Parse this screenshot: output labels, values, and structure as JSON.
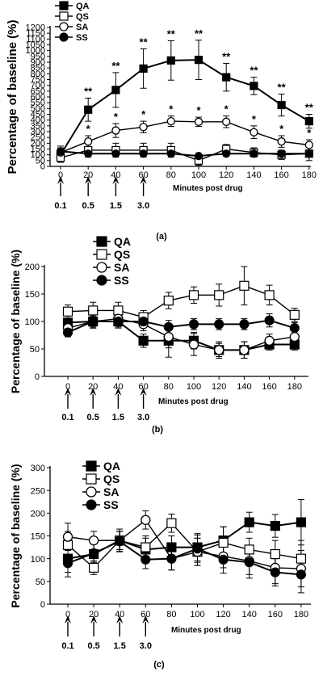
{
  "chart_data": [
    {
      "type": "line",
      "panel_label": "(a)",
      "ylabel": "Percentage of baseline (%)",
      "xlabel": "Minutes post drug",
      "x": [
        0,
        20,
        40,
        60,
        80,
        100,
        120,
        140,
        160,
        180
      ],
      "xticks": [
        "0",
        "20",
        "40",
        "60",
        "80",
        "100",
        "120",
        "140",
        "160",
        "180"
      ],
      "ylim": [
        0,
        1200
      ],
      "yticks": [
        "0",
        "50",
        "100",
        "150",
        "200",
        "250",
        "300",
        "350",
        "400",
        "450",
        "500",
        "550",
        "600",
        "650",
        "700",
        "750",
        "800",
        "850",
        "900",
        "950",
        "1000",
        "1050",
        "1100",
        "1150",
        "1200"
      ],
      "ytick_values": [
        0,
        50,
        100,
        150,
        200,
        250,
        300,
        350,
        400,
        450,
        500,
        550,
        600,
        650,
        700,
        750,
        800,
        850,
        900,
        950,
        1000,
        1050,
        1100,
        1150,
        1200
      ],
      "doses": [
        {
          "x": 0,
          "label": "0.1"
        },
        {
          "x": 20,
          "label": "0.5"
        },
        {
          "x": 40,
          "label": "1.5"
        },
        {
          "x": 60,
          "label": "3.0"
        }
      ],
      "legend": [
        "QA",
        "QS",
        "SA",
        "SS"
      ],
      "series": [
        {
          "name": "QA",
          "marker": "square-filled",
          "values": [
            100,
            490,
            660,
            845,
            915,
            920,
            770,
            695,
            530,
            390
          ],
          "errors": [
            55,
            100,
            150,
            170,
            170,
            170,
            120,
            75,
            95,
            60
          ]
        },
        {
          "name": "QS",
          "marker": "square-open",
          "values": [
            75,
            140,
            140,
            140,
            140,
            50,
            150,
            120,
            100,
            110
          ],
          "errors": [
            40,
            60,
            60,
            60,
            60,
            40,
            40,
            40,
            40,
            60
          ]
        },
        {
          "name": "SA",
          "marker": "circle-open",
          "values": [
            120,
            215,
            310,
            340,
            390,
            385,
            385,
            295,
            215,
            185
          ],
          "errors": [
            55,
            50,
            60,
            50,
            45,
            40,
            50,
            55,
            50,
            45
          ]
        },
        {
          "name": "SS",
          "marker": "circle-filled",
          "values": [
            130,
            110,
            110,
            110,
            110,
            90,
            110,
            110,
            110,
            110
          ],
          "errors": [
            30,
            20,
            20,
            20,
            20,
            20,
            20,
            20,
            20,
            20
          ]
        }
      ],
      "stars": [
        {
          "series": "QA",
          "x": 20,
          "text": "**"
        },
        {
          "series": "QA",
          "x": 40,
          "text": "**"
        },
        {
          "series": "QA",
          "x": 60,
          "text": "**"
        },
        {
          "series": "QA",
          "x": 80,
          "text": "**"
        },
        {
          "series": "QA",
          "x": 100,
          "text": "**"
        },
        {
          "series": "QA",
          "x": 120,
          "text": "**"
        },
        {
          "series": "QA",
          "x": 140,
          "text": "**"
        },
        {
          "series": "QA",
          "x": 160,
          "text": "**"
        },
        {
          "series": "QA",
          "x": 180,
          "text": "**"
        },
        {
          "series": "SA",
          "x": 20,
          "text": "*"
        },
        {
          "series": "SA",
          "x": 40,
          "text": "*"
        },
        {
          "series": "SA",
          "x": 60,
          "text": "*"
        },
        {
          "series": "SA",
          "x": 80,
          "text": "*"
        },
        {
          "series": "SA",
          "x": 100,
          "text": "*"
        },
        {
          "series": "SA",
          "x": 120,
          "text": "*"
        },
        {
          "series": "SA",
          "x": 140,
          "text": "*"
        },
        {
          "series": "SA",
          "x": 160,
          "text": "*"
        },
        {
          "series": "SA",
          "x": 180,
          "text": "*"
        }
      ]
    },
    {
      "type": "line",
      "panel_label": "(b)",
      "ylabel": "Percentage of baseline (%)",
      "xlabel": "Minutes post drug",
      "x": [
        0,
        20,
        40,
        60,
        80,
        100,
        120,
        140,
        160,
        180
      ],
      "xticks": [
        "0",
        "20",
        "40",
        "60",
        "80",
        "100",
        "120",
        "140",
        "160",
        "180"
      ],
      "ylim": [
        0,
        200
      ],
      "yticks": [
        "0",
        "50",
        "100",
        "150",
        "200"
      ],
      "ytick_values": [
        0,
        50,
        100,
        150,
        200
      ],
      "doses": [
        {
          "x": 0,
          "label": "0.1"
        },
        {
          "x": 20,
          "label": "0.5"
        },
        {
          "x": 40,
          "label": "1.5"
        },
        {
          "x": 60,
          "label": "3.0"
        }
      ],
      "legend": [
        "QA",
        "QS",
        "SA",
        "SS"
      ],
      "series": [
        {
          "name": "QA",
          "marker": "square-filled",
          "values": [
            98,
            100,
            100,
            65,
            65,
            65,
            48,
            48,
            58,
            58
          ],
          "errors": [
            12,
            12,
            12,
            12,
            30,
            15,
            15,
            15,
            10,
            10
          ]
        },
        {
          "name": "QS",
          "marker": "square-open",
          "values": [
            118,
            120,
            120,
            108,
            138,
            148,
            148,
            165,
            148,
            112
          ],
          "errors": [
            12,
            15,
            15,
            12,
            15,
            15,
            20,
            35,
            18,
            12
          ]
        },
        {
          "name": "SA",
          "marker": "circle-open",
          "values": [
            88,
            100,
            105,
            95,
            72,
            58,
            48,
            48,
            65,
            72
          ],
          "errors": [
            12,
            12,
            12,
            12,
            20,
            20,
            12,
            15,
            12,
            12
          ]
        },
        {
          "name": "SS",
          "marker": "circle-filled",
          "values": [
            80,
            100,
            100,
            100,
            90,
            95,
            95,
            95,
            102,
            88
          ],
          "errors": [
            8,
            10,
            10,
            10,
            12,
            10,
            10,
            10,
            12,
            10
          ]
        }
      ]
    },
    {
      "type": "line",
      "panel_label": "(c)",
      "ylabel": "Percentage of baseline (%)",
      "xlabel": "Minutes post drug",
      "x": [
        0,
        20,
        40,
        60,
        80,
        100,
        120,
        140,
        160,
        180
      ],
      "xticks": [
        "0",
        "20",
        "40",
        "60",
        "80",
        "100",
        "120",
        "140",
        "160",
        "180"
      ],
      "ylim": [
        0,
        300
      ],
      "yticks": [
        "0",
        "50",
        "100",
        "150",
        "200",
        "250",
        "300"
      ],
      "ytick_values": [
        0,
        50,
        100,
        150,
        200,
        250,
        300
      ],
      "doses": [
        {
          "x": 0,
          "label": "0.1"
        },
        {
          "x": 20,
          "label": "0.5"
        },
        {
          "x": 40,
          "label": "1.5"
        },
        {
          "x": 60,
          "label": "3.0"
        }
      ],
      "legend": [
        "QA",
        "QS",
        "SA",
        "SS"
      ],
      "series": [
        {
          "name": "QA",
          "marker": "square-filled",
          "values": [
            100,
            110,
            140,
            120,
            125,
            125,
            140,
            180,
            172,
            180
          ],
          "errors": [
            30,
            25,
            25,
            25,
            25,
            30,
            30,
            22,
            25,
            50
          ]
        },
        {
          "name": "QS",
          "marker": "square-open",
          "values": [
            130,
            80,
            140,
            125,
            178,
            115,
            135,
            120,
            110,
            100
          ],
          "errors": [
            30,
            15,
            20,
            25,
            20,
            30,
            35,
            25,
            30,
            40
          ]
        },
        {
          "name": "SA",
          "marker": "circle-open",
          "values": [
            148,
            140,
            140,
            185,
            100,
            115,
            105,
            95,
            80,
            78
          ],
          "errors": [
            30,
            20,
            20,
            20,
            25,
            30,
            25,
            30,
            35,
            40
          ]
        },
        {
          "name": "SS",
          "marker": "circle-filled",
          "values": [
            90,
            112,
            138,
            98,
            100,
            122,
            98,
            92,
            70,
            65
          ],
          "errors": [
            30,
            20,
            22,
            20,
            25,
            30,
            30,
            35,
            30,
            40
          ]
        }
      ]
    }
  ]
}
